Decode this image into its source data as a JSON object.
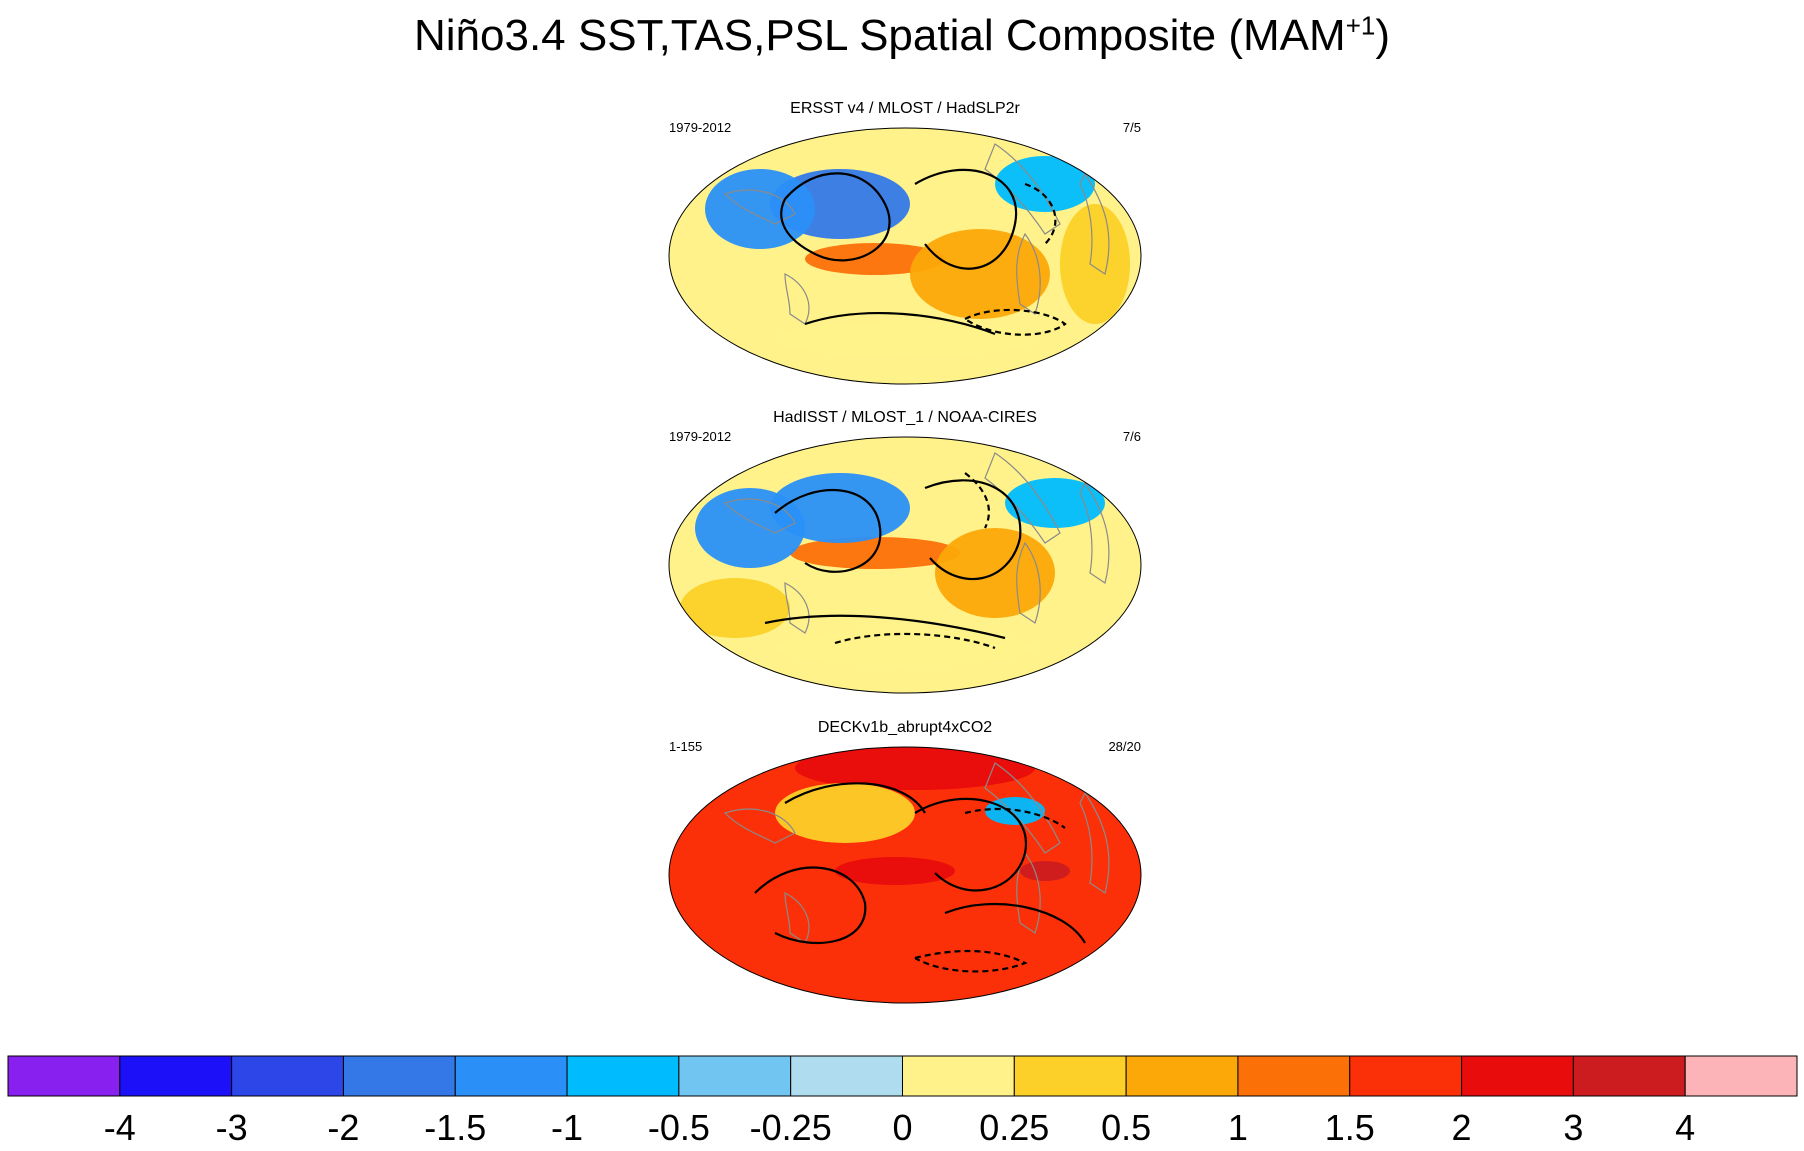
{
  "title": {
    "main": "Niño3.4 SST,TAS,PSL Spatial Composite (MAM",
    "superscript": "+1",
    "suffix": ")"
  },
  "chart_data": {
    "type": "map-composite",
    "title": "Niño3.4 SST,TAS,PSL Spatial Composite (MAM+1)",
    "projection": "Robinson (Pacific-centered)",
    "panels": [
      {
        "title": "ERSST v4 / MLOST / HadSLP2r",
        "period": "1979-2012",
        "count": "7/5",
        "anomalies": [
          {
            "region": "central-eastern equatorial Pacific",
            "value": 1.5
          },
          {
            "region": "eastern tropical Pacific",
            "value": 1
          },
          {
            "region": "north-central Pacific",
            "value": -1.5
          },
          {
            "region": "western Pacific",
            "value": -1
          },
          {
            "region": "Indian Ocean",
            "value": 0.5
          },
          {
            "region": "North Atlantic",
            "value": -0.5
          },
          {
            "region": "Southern Ocean",
            "value": 0.25
          }
        ]
      },
      {
        "title": "HadISST / MLOST_1 / NOAA-CIRES",
        "period": "1979-2012",
        "count": "7/6",
        "anomalies": [
          {
            "region": "central-eastern equatorial Pacific",
            "value": 1.5
          },
          {
            "region": "eastern tropical Pacific",
            "value": 1
          },
          {
            "region": "north-central Pacific",
            "value": -1
          },
          {
            "region": "western Pacific",
            "value": -1
          },
          {
            "region": "Indian Ocean",
            "value": 0.5
          },
          {
            "region": "North Atlantic",
            "value": -0.5
          },
          {
            "region": "Southern Ocean",
            "value": 0.25
          }
        ]
      },
      {
        "title": "DECKv1b_abrupt4xCO2",
        "period": "1-155",
        "count": "28/20",
        "anomalies": [
          {
            "region": "global ocean background",
            "value": 2
          },
          {
            "region": "Arctic / high latitudes",
            "value": 3
          },
          {
            "region": "eastern equatorial Pacific",
            "value": 3
          },
          {
            "region": "north-central Pacific",
            "value": 0.5
          },
          {
            "region": "North Atlantic subpolar",
            "value": -0.5
          },
          {
            "region": "Southern Ocean",
            "value": 2
          },
          {
            "region": "tropical Atlantic",
            "value": 4
          }
        ]
      }
    ],
    "colorbar": {
      "levels": [
        "-4",
        "-3",
        "-2",
        "-1.5",
        "-1",
        "-0.5",
        "-0.25",
        "0",
        "0.25",
        "0.5",
        "1",
        "1.5",
        "2",
        "3",
        "4"
      ],
      "colors": [
        "#8820f0",
        "#1c10f8",
        "#2c46e8",
        "#3478e8",
        "#2a90f8",
        "#00bcff",
        "#70c6f0",
        "#b0dcf0",
        "#fff28a",
        "#fcd028",
        "#fca808",
        "#fc7008",
        "#fc3008",
        "#e80c0c",
        "#cc1c20",
        "#fcb4b8"
      ]
    }
  }
}
